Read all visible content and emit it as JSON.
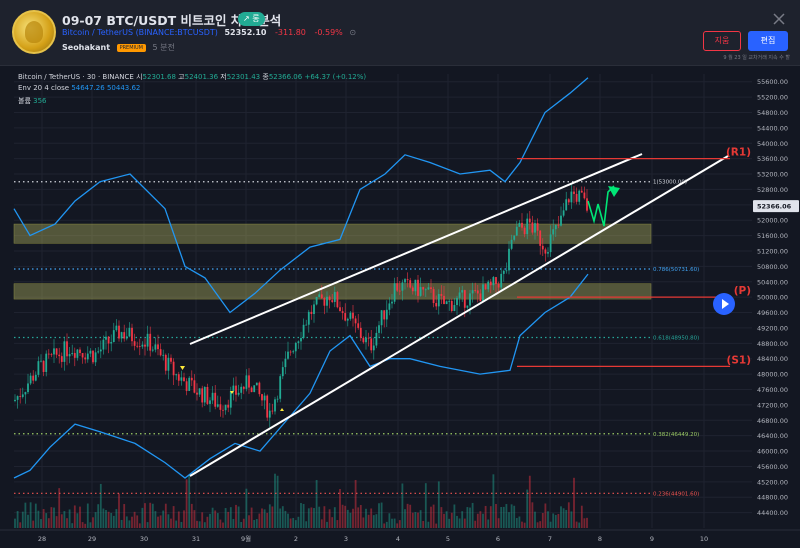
{
  "header": {
    "title": "09-07 BTC/USDT 비트코인 차트 분석",
    "badge": "↗ 롱",
    "symbol_name": "Bitcoin / TetherUS",
    "symbol_exchange": "(BINANCE:BTCUSDT)",
    "price": "52352.10",
    "change": "-311.80",
    "change_pct": "-0.59%",
    "author": "Seohakant",
    "author_badge": "PREMIUM",
    "time_ago": "5 분전",
    "cancel_label": "지움",
    "edit_label": "편집",
    "note": "9 월 23 일 교차거래 지속 수 할"
  },
  "legend": {
    "symbol": "Bitcoin / TetherUS · 30 · BINANCE",
    "o_label": "시",
    "o": "52301.68",
    "h_label": "고",
    "h": "52401.36",
    "l_label": "저",
    "l": "52301.43",
    "c_label": "종",
    "c": "52366.06",
    "chg": "+64.37 (+0.12%)",
    "env_label": "Env 20 4 close",
    "env_upper": "54647.26",
    "env_lower": "50443.62",
    "vol_label": "볼륨",
    "vol": "356"
  },
  "colors": {
    "background": "#131722",
    "up": "#22ab94",
    "down": "#f23645",
    "envelope": "#2196f3",
    "zone": "#cccc66",
    "level": "#e53935"
  },
  "chart_data": {
    "type": "candlestick",
    "yaxis": {
      "min": 44000,
      "max": 55800,
      "ticks": [
        "55600.00",
        "55200.00",
        "54800.00",
        "54400.00",
        "54000.00",
        "53600.00",
        "53200.00",
        "52800.00",
        "52400.00",
        "52000.00",
        "51600.00",
        "51200.00",
        "50800.00",
        "50400.00",
        "50000.00",
        "49600.00",
        "49200.00",
        "48800.00",
        "48400.00",
        "48000.00",
        "47600.00",
        "47200.00",
        "46800.00",
        "46400.00",
        "46000.00",
        "45600.00",
        "45200.00",
        "44800.00",
        "44400.00"
      ],
      "current_price": "52366.06"
    },
    "xaxis_ticks": [
      "28",
      "29",
      "30",
      "31",
      "9월",
      "2",
      "3",
      "4",
      "5",
      "6",
      "7",
      "8",
      "9",
      "10"
    ],
    "fib_levels": [
      {
        "label": "1(53000.00)",
        "value": 53000.0,
        "color": "#d1d4dc"
      },
      {
        "label": "0.786(50731.60)",
        "value": 50731.6,
        "color": "#42a5f5"
      },
      {
        "label": "0.618(48950.80)",
        "value": 48950.8,
        "color": "#26a69a"
      },
      {
        "label": "0.382(46449.20)",
        "value": 46449.2,
        "color": "#9ccc65"
      },
      {
        "label": "0.236(44901.60)",
        "value": 44901.6,
        "color": "#ef5350"
      }
    ],
    "levels": [
      {
        "label": "(R1)",
        "value": 53600
      },
      {
        "label": "(P)",
        "value": 50000
      },
      {
        "label": "(S1)",
        "value": 48200
      }
    ],
    "zones": [
      {
        "from": 51400,
        "to": 51900
      },
      {
        "from": 49950,
        "to": 50350
      }
    ]
  }
}
